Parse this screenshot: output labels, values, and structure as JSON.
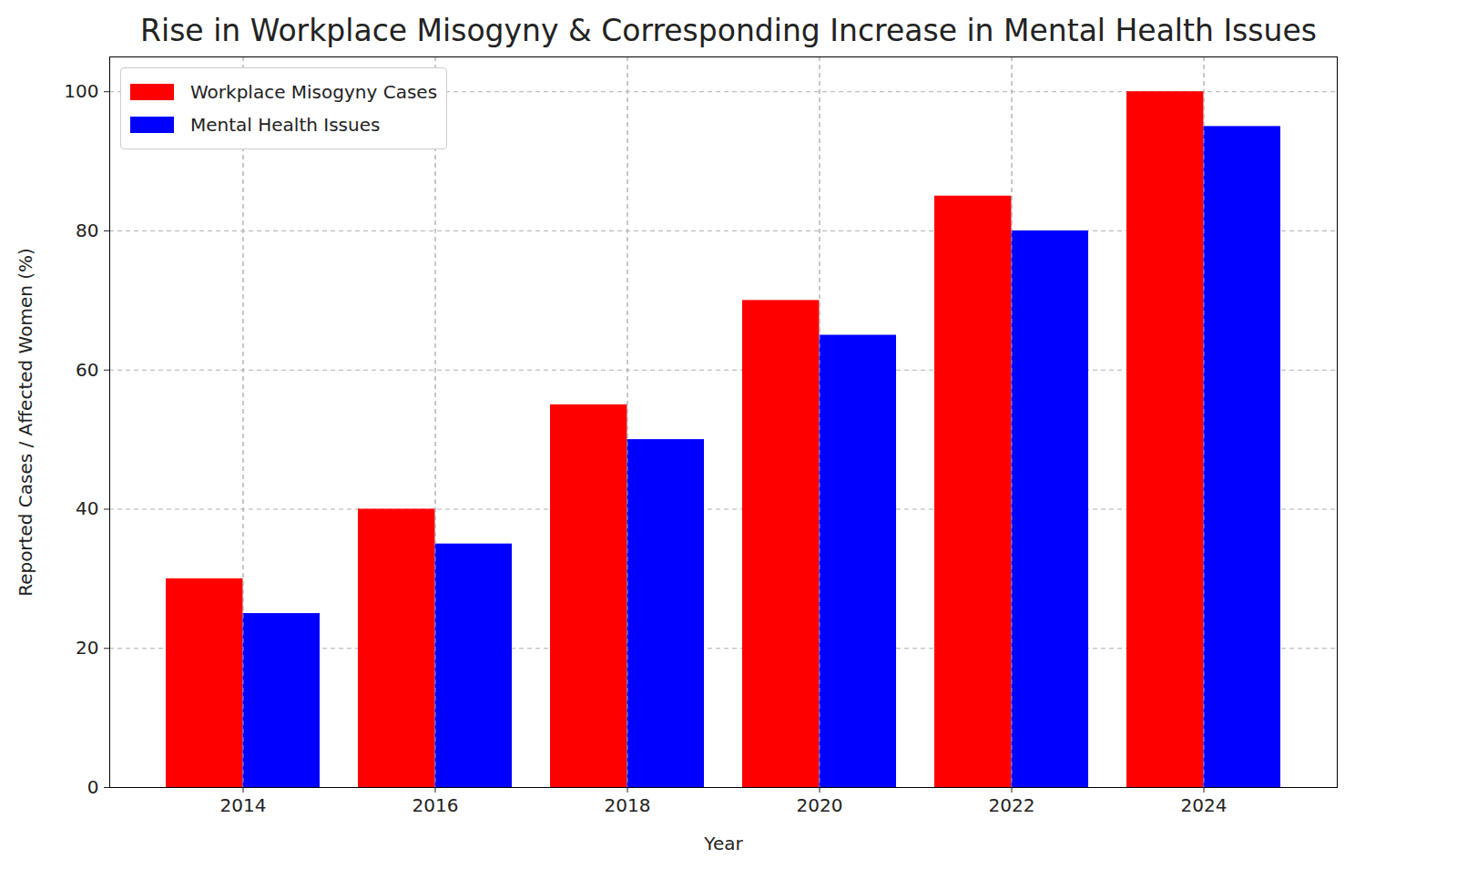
{
  "chart_data": {
    "type": "bar",
    "title": "Rise in Workplace Misogyny & Corresponding Increase in Mental Health Issues",
    "x_label": "Year",
    "y_label": "Reported Cases / Affected Women (%)",
    "categories": [
      "2014",
      "2016",
      "2018",
      "2020",
      "2022",
      "2024"
    ],
    "series": [
      {
        "name": "Workplace Misogyny Cases",
        "color": "red",
        "values": [
          30,
          40,
          55,
          70,
          85,
          100
        ]
      },
      {
        "name": "Mental Health Issues",
        "color": "blue",
        "values": [
          25,
          35,
          50,
          65,
          80,
          95
        ]
      }
    ],
    "ylim": [
      0,
      105
    ],
    "yticks": [
      0,
      20,
      40,
      60,
      80,
      100
    ],
    "grid": true,
    "legend": "upper left"
  }
}
